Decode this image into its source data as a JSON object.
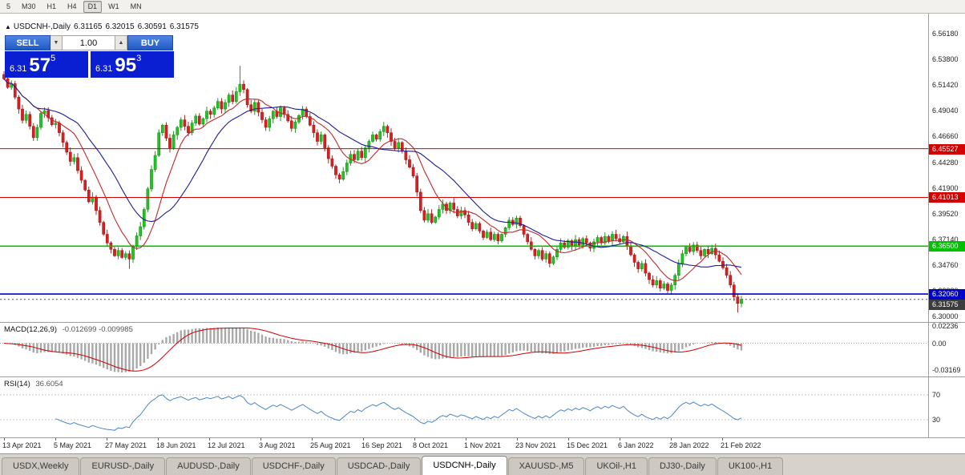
{
  "toolbar": {
    "timeframes": [
      {
        "label": "5",
        "active": false
      },
      {
        "label": "M30",
        "active": false
      },
      {
        "label": "H1",
        "active": false
      },
      {
        "label": "H4",
        "active": false
      },
      {
        "label": "D1",
        "active": true
      },
      {
        "label": "W1",
        "active": false
      },
      {
        "label": "MN",
        "active": false
      }
    ]
  },
  "chart": {
    "header": {
      "marker_icon": "▲",
      "symbol": "USDCNH-,Daily",
      "open": "6.31165",
      "high": "6.32015",
      "low": "6.30591",
      "close": "6.31575"
    },
    "trade_panel": {
      "sell_label": "SELL",
      "buy_label": "BUY",
      "volume": "1.00",
      "volume_down_icon": "▼",
      "volume_up_icon": "▲",
      "sell_price": {
        "prefix": "6.31",
        "big": "57",
        "sup": "5"
      },
      "buy_price": {
        "prefix": "6.31",
        "big": "95",
        "sup": "3"
      }
    },
    "y_ticks": [
      "6.56180",
      "6.53800",
      "6.51420",
      "6.49040",
      "6.46660",
      "6.44280",
      "6.41900",
      "6.39520",
      "6.37140",
      "6.34760",
      "6.32380",
      "6.30000"
    ],
    "x_labels": [
      "13 Apr 2021",
      "5 May 2021",
      "27 May 2021",
      "18 Jun 2021",
      "12 Jul 2021",
      "3 Aug 2021",
      "25 Aug 2021",
      "16 Sep 2021",
      "8 Oct 2021",
      "1 Nov 2021",
      "23 Nov 2021",
      "15 Dec 2021",
      "6 Jan 2022",
      "28 Jan 2022",
      "21 Feb 2022"
    ],
    "levels": [
      {
        "label": "6.45527",
        "value": 6.45527,
        "color": "#d40000",
        "width": 1
      },
      {
        "label": "6.41013",
        "value": 6.41013,
        "color": "#d40000",
        "width": 1
      },
      {
        "label": "6.36500",
        "value": 6.365,
        "color": "#00c000",
        "width": 1.6
      },
      {
        "label": "6.32060",
        "value": 6.3206,
        "color": "#0000c8",
        "width": 1.6
      }
    ],
    "current_price": {
      "label": "6.31575",
      "value": 6.31575,
      "color": "#3c3c3c"
    }
  },
  "indicators": {
    "macd": {
      "title": "MACD(12,26,9)",
      "values": "-0.012699 -0.009985",
      "ticks": [
        {
          "label": "0.02236",
          "value": 0.02236
        },
        {
          "label": "0.00",
          "value": 0
        },
        {
          "label": "-0.03169",
          "value": -0.03169
        }
      ]
    },
    "rsi": {
      "title": "RSI(14)",
      "value": "36.6054",
      "ticks": [
        {
          "label": "70",
          "value": 70
        },
        {
          "label": "30",
          "value": 30
        }
      ],
      "levels": [
        70,
        30
      ]
    }
  },
  "tabs": [
    {
      "label": "USDX,Weekly",
      "active": false
    },
    {
      "label": "EURUSD-,Daily",
      "active": false
    },
    {
      "label": "AUDUSD-,Daily",
      "active": false
    },
    {
      "label": "USDCHF-,Daily",
      "active": false
    },
    {
      "label": "USDCAD-,Daily",
      "active": false
    },
    {
      "label": "USDCNH-,Daily",
      "active": true
    },
    {
      "label": "XAUUSD-,M5",
      "active": false
    },
    {
      "label": "UKOil-,H1",
      "active": false
    },
    {
      "label": "DJ30-,Daily",
      "active": false
    },
    {
      "label": "UK100-,H1",
      "active": false
    }
  ],
  "chart_data": {
    "type": "candlestick",
    "symbol": "USDCNH",
    "period": "Daily",
    "y_range": [
      6.297,
      6.572
    ],
    "closes": [
      6.52,
      6.512,
      6.5155,
      6.503,
      6.492,
      6.4815,
      6.487,
      6.476,
      6.4655,
      6.475,
      6.488,
      6.4905,
      6.484,
      6.4775,
      6.479,
      6.47,
      6.461,
      6.452,
      6.4435,
      6.447,
      6.435,
      6.426,
      6.417,
      6.406,
      6.4105,
      6.398,
      6.387,
      6.376,
      6.368,
      6.362,
      6.356,
      6.361,
      6.3545,
      6.358,
      6.353,
      6.365,
      6.3745,
      6.383,
      6.399,
      6.418,
      6.436,
      6.449,
      6.47,
      6.477,
      6.465,
      6.456,
      6.468,
      6.475,
      6.482,
      6.476,
      6.47,
      6.479,
      6.4855,
      6.478,
      6.483,
      6.49,
      6.487,
      6.493,
      6.499,
      6.492,
      6.498,
      6.505,
      6.499,
      6.508,
      6.515,
      6.51,
      6.496,
      6.49,
      6.498,
      6.489,
      6.482,
      6.475,
      6.483,
      6.49,
      6.485,
      6.493,
      6.487,
      6.481,
      6.474,
      6.48,
      6.486,
      6.492,
      6.485,
      6.477,
      6.47,
      6.462,
      6.468,
      6.456,
      6.446,
      6.439,
      6.431,
      6.427,
      6.434,
      6.442,
      6.45,
      6.445,
      6.453,
      6.447,
      6.456,
      6.462,
      6.468,
      6.464,
      6.471,
      6.476,
      6.47,
      6.462,
      6.456,
      6.461,
      6.453,
      6.445,
      6.438,
      6.43,
      6.415,
      6.398,
      6.389,
      6.395,
      6.387,
      6.392,
      6.399,
      6.404,
      6.398,
      6.405,
      6.399,
      6.393,
      6.398,
      6.394,
      6.387,
      6.381,
      6.386,
      6.379,
      6.373,
      6.378,
      6.371,
      6.376,
      6.37,
      6.376,
      6.382,
      6.389,
      6.385,
      6.391,
      6.384,
      6.376,
      6.369,
      6.362,
      6.356,
      6.361,
      6.353,
      6.358,
      6.349,
      6.355,
      6.362,
      6.368,
      6.364,
      6.37,
      6.365,
      6.371,
      6.366,
      6.372,
      6.368,
      6.363,
      6.369,
      6.373,
      6.368,
      6.374,
      6.37,
      6.376,
      6.372,
      6.369,
      6.374,
      6.365,
      6.357,
      6.35,
      6.344,
      6.349,
      6.34,
      6.334,
      6.329,
      6.333,
      6.326,
      6.33,
      6.324,
      6.329,
      6.338,
      6.349,
      6.358,
      6.364,
      6.36,
      6.366,
      6.361,
      6.356,
      6.362,
      6.358,
      6.363,
      6.357,
      6.351,
      6.345,
      6.338,
      6.329,
      6.318,
      6.312,
      6.3158
    ],
    "high_overrides": {
      "0": 6.527,
      "64": 6.532
    },
    "low_overrides": {
      "34": 6.344,
      "180": 6.3215,
      "199": 6.3035
    },
    "moving_averages": [
      {
        "period": 10,
        "color": "#c62828"
      },
      {
        "period": 21,
        "color": "#1c1c96"
      }
    ],
    "colors": {
      "up_fill": "#21c421",
      "up_stroke": "#0f8a0f",
      "down_fill": "#d42222",
      "down_stroke": "#a31111",
      "macd_hist": "#a8a8a8",
      "macd_signal": "#cc0000",
      "rsi_line": "#4a86c8"
    }
  }
}
